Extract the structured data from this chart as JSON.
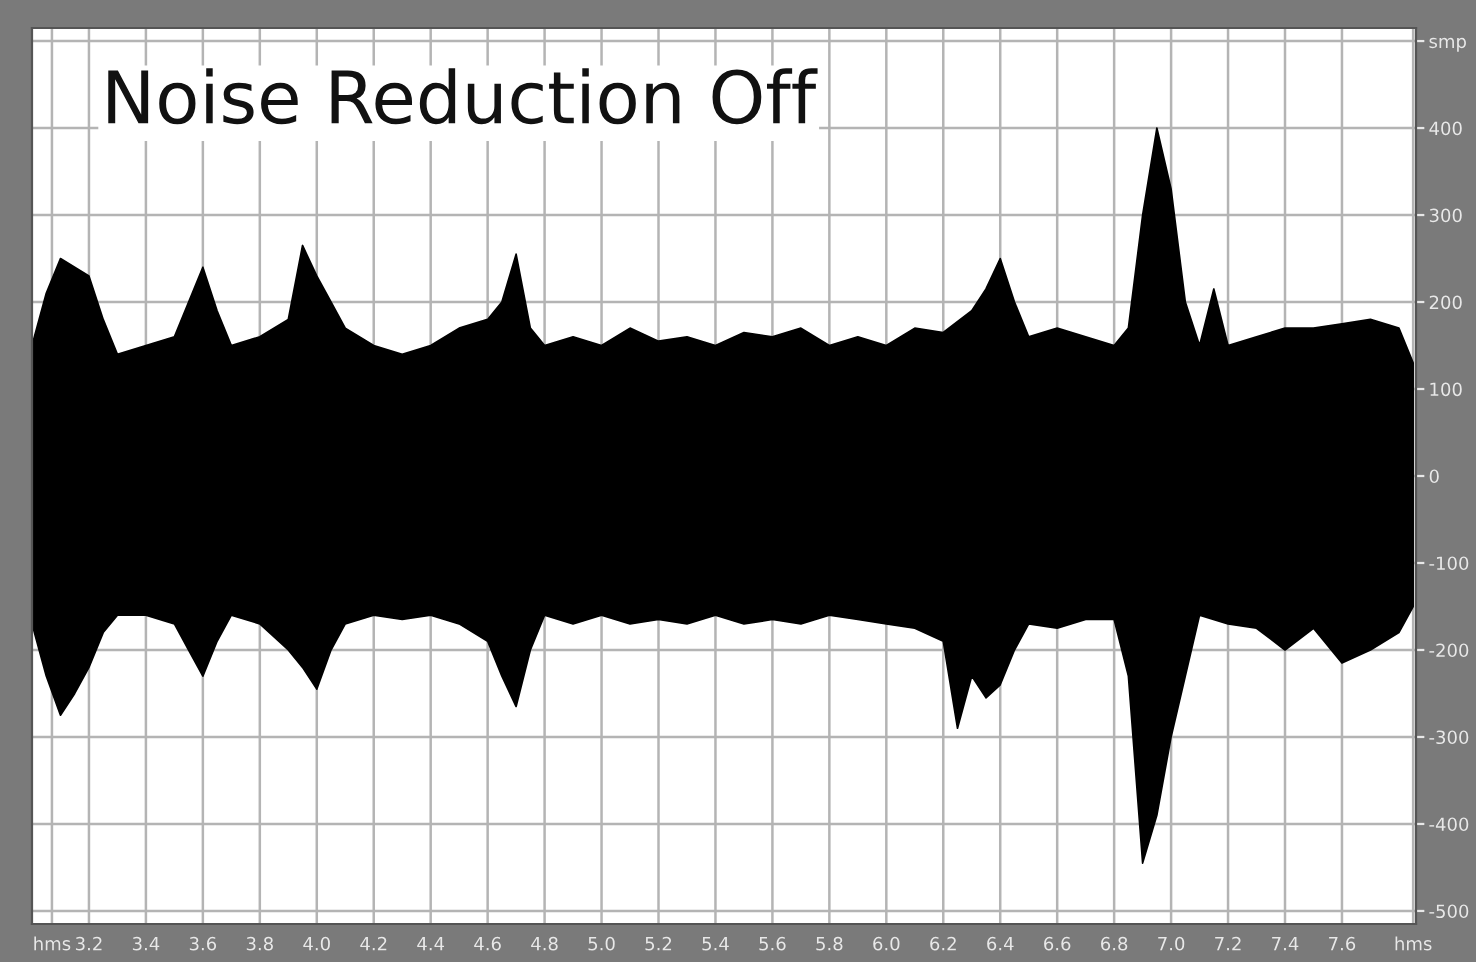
{
  "chart_data": {
    "type": "area",
    "title": "Noise Reduction Off",
    "xlim": [
      3.0,
      7.86
    ],
    "ylim": [
      -515,
      515
    ],
    "xticks": [
      {
        "value": 3.07,
        "label": "hms"
      },
      3.2,
      3.4,
      3.6,
      3.8,
      {
        "value": 4.0,
        "label": "4.0"
      },
      4.2,
      4.4,
      4.6,
      4.8,
      {
        "value": 5.0,
        "label": "5.0"
      },
      5.2,
      5.4,
      5.6,
      5.8,
      {
        "value": 6.0,
        "label": "6.0"
      },
      6.2,
      6.4,
      6.6,
      6.8,
      {
        "value": 7.0,
        "label": "7.0"
      },
      7.2,
      7.4,
      7.6,
      {
        "value": 7.85,
        "label": "hms"
      }
    ],
    "yticks": [
      {
        "value": 500,
        "label": "smp"
      },
      400,
      300,
      200,
      100,
      0,
      -100,
      -200,
      -300,
      -400,
      -500
    ],
    "grid": true,
    "legend": false,
    "series": [
      {
        "color": "#000000",
        "x": [
          3.0,
          3.05,
          3.1,
          3.15,
          3.2,
          3.25,
          3.3,
          3.4,
          3.5,
          3.55,
          3.6,
          3.65,
          3.7,
          3.8,
          3.9,
          3.95,
          4.0,
          4.05,
          4.1,
          4.2,
          4.3,
          4.4,
          4.5,
          4.6,
          4.65,
          4.7,
          4.75,
          4.8,
          4.9,
          5.0,
          5.1,
          5.2,
          5.3,
          5.4,
          5.5,
          5.6,
          5.7,
          5.8,
          5.9,
          6.0,
          6.1,
          6.2,
          6.3,
          6.35,
          6.4,
          6.45,
          6.5,
          6.6,
          6.7,
          6.8,
          6.85,
          6.9,
          6.95,
          7.0,
          7.05,
          7.1,
          7.15,
          7.2,
          7.3,
          7.4,
          7.5,
          7.6,
          7.7,
          7.8,
          7.85
        ],
        "values": [
          150,
          210,
          250,
          240,
          230,
          180,
          140,
          150,
          160,
          200,
          240,
          190,
          150,
          160,
          180,
          265,
          230,
          200,
          170,
          150,
          140,
          150,
          170,
          180,
          200,
          255,
          170,
          150,
          160,
          150,
          170,
          155,
          160,
          150,
          165,
          160,
          170,
          150,
          160,
          150,
          170,
          165,
          190,
          215,
          250,
          200,
          160,
          170,
          160,
          150,
          170,
          300,
          400,
          330,
          200,
          150,
          215,
          150,
          160,
          170,
          170,
          175,
          180,
          170,
          130
        ]
      },
      {
        "color": "#000000",
        "x": [
          3.0,
          3.05,
          3.1,
          3.15,
          3.2,
          3.25,
          3.3,
          3.4,
          3.5,
          3.55,
          3.6,
          3.65,
          3.7,
          3.8,
          3.9,
          3.95,
          4.0,
          4.05,
          4.1,
          4.2,
          4.3,
          4.4,
          4.5,
          4.6,
          4.65,
          4.7,
          4.75,
          4.8,
          4.9,
          5.0,
          5.1,
          5.2,
          5.3,
          5.4,
          5.5,
          5.6,
          5.7,
          5.8,
          5.9,
          6.0,
          6.1,
          6.2,
          6.25,
          6.3,
          6.35,
          6.4,
          6.45,
          6.5,
          6.6,
          6.7,
          6.8,
          6.85,
          6.9,
          6.95,
          7.0,
          7.05,
          7.1,
          7.2,
          7.3,
          7.4,
          7.5,
          7.6,
          7.7,
          7.8,
          7.85
        ],
        "values": [
          -170,
          -230,
          -275,
          -250,
          -220,
          -180,
          -160,
          -160,
          -170,
          -200,
          -230,
          -190,
          -160,
          -170,
          -200,
          -220,
          -245,
          -200,
          -170,
          -160,
          -165,
          -160,
          -170,
          -190,
          -230,
          -265,
          -200,
          -160,
          -170,
          -160,
          -170,
          -165,
          -170,
          -160,
          -170,
          -165,
          -170,
          -160,
          -165,
          -170,
          -175,
          -190,
          -290,
          -230,
          -255,
          -240,
          -200,
          -170,
          -175,
          -165,
          -165,
          -230,
          -445,
          -390,
          -300,
          -230,
          -160,
          -170,
          -175,
          -200,
          -175,
          -215,
          -200,
          -180,
          -150
        ]
      }
    ]
  }
}
